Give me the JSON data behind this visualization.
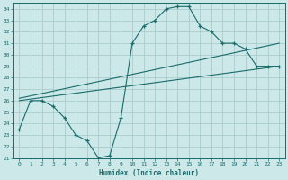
{
  "title": "",
  "xlabel": "Humidex (Indice chaleur)",
  "bg_color": "#cce8e8",
  "grid_color": "#aacccc",
  "line_color": "#1a6b6b",
  "xlim": [
    -0.5,
    23.5
  ],
  "ylim": [
    21,
    34.5
  ],
  "xticks": [
    0,
    1,
    2,
    3,
    4,
    5,
    6,
    7,
    8,
    9,
    10,
    11,
    12,
    13,
    14,
    15,
    16,
    17,
    18,
    19,
    20,
    21,
    22,
    23
  ],
  "yticks": [
    21,
    22,
    23,
    24,
    25,
    26,
    27,
    28,
    29,
    30,
    31,
    32,
    33,
    34
  ],
  "curve1_x": [
    0,
    1,
    2,
    3,
    4,
    5,
    6,
    7,
    8,
    9,
    10,
    11,
    12,
    13,
    14,
    15,
    16,
    17,
    18,
    19,
    20,
    21,
    22,
    23
  ],
  "curve1_y": [
    23.5,
    26.0,
    26.0,
    25.5,
    24.5,
    23.0,
    22.5,
    21.0,
    21.2,
    24.5,
    31.0,
    32.5,
    33.0,
    34.0,
    34.2,
    34.2,
    32.5,
    32.0,
    31.0,
    31.0,
    30.5,
    29.0,
    29.0,
    29.0
  ],
  "line2_x": [
    0,
    23
  ],
  "line2_y": [
    26.0,
    29.0
  ],
  "line3_x": [
    0,
    23
  ],
  "line3_y": [
    26.2,
    31.0
  ]
}
